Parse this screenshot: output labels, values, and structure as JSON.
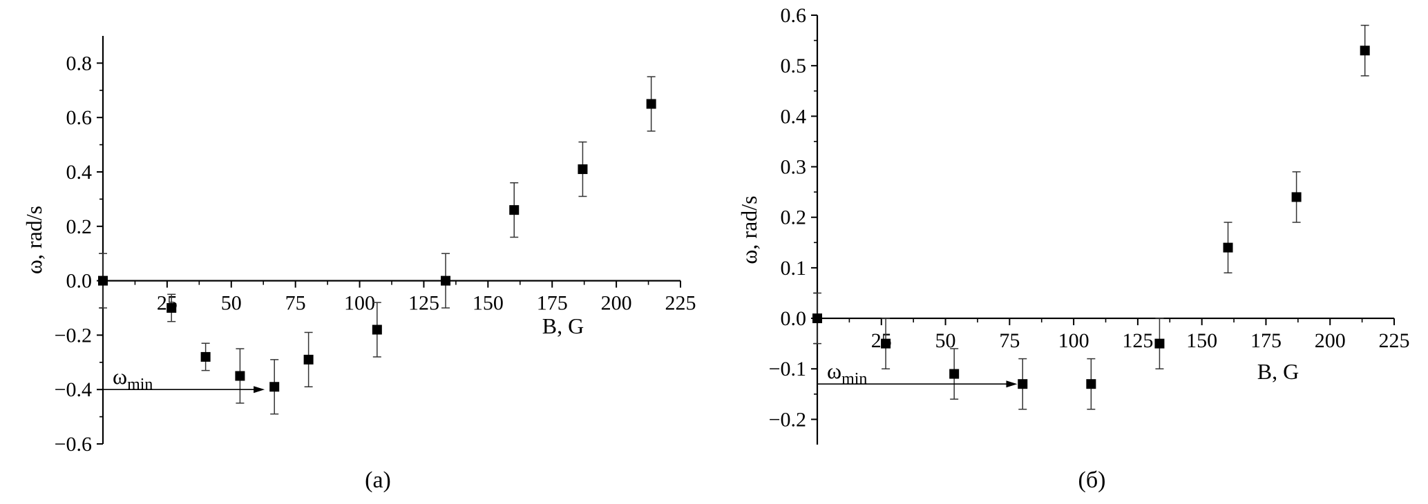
{
  "chart_data": [
    {
      "type": "scatter",
      "panel_label": "(a)",
      "xlabel": "B, G",
      "ylabel": "ω, rad/s",
      "xlim": [
        0,
        225
      ],
      "ylim": [
        -0.6,
        0.9
      ],
      "x_ticks": [
        25,
        50,
        75,
        100,
        125,
        150,
        175,
        200,
        225
      ],
      "y_ticks": [
        -0.6,
        -0.4,
        -0.2,
        0.0,
        0.2,
        0.4,
        0.6,
        0.8
      ],
      "x_tick_labels": [
        "25",
        "50",
        "75",
        "100",
        "125",
        "150",
        "175",
        "200",
        "225"
      ],
      "y_tick_labels": [
        "-0.6",
        "-0.4",
        "-0.2",
        "0.0",
        "0.2",
        "0.4",
        "0.6",
        "0.8"
      ],
      "marker": "filled-square",
      "grid": false,
      "points": [
        {
          "x": 0,
          "y": 0.0,
          "err": 0.1
        },
        {
          "x": 26.7,
          "y": -0.1,
          "err": 0.05
        },
        {
          "x": 40,
          "y": -0.28,
          "err": 0.05
        },
        {
          "x": 53.4,
          "y": -0.35,
          "err": 0.1
        },
        {
          "x": 66.8,
          "y": -0.39,
          "err": 0.1
        },
        {
          "x": 80.1,
          "y": -0.29,
          "err": 0.1
        },
        {
          "x": 106.8,
          "y": -0.18,
          "err": 0.1
        },
        {
          "x": 133.5,
          "y": 0.0,
          "err": 0.1
        },
        {
          "x": 160.2,
          "y": 0.26,
          "err": 0.1
        },
        {
          "x": 186.9,
          "y": 0.41,
          "err": 0.1
        },
        {
          "x": 213.6,
          "y": 0.65,
          "err": 0.1
        }
      ],
      "annotation": {
        "text": "ω",
        "subscript": "min",
        "y": -0.4,
        "x_to": 63
      }
    },
    {
      "type": "scatter",
      "panel_label": "(б)",
      "xlabel": "B, G",
      "ylabel": "ω, rad/s",
      "xlim": [
        0,
        225
      ],
      "ylim": [
        -0.25,
        0.6
      ],
      "x_ticks": [
        25,
        50,
        75,
        100,
        125,
        150,
        175,
        200,
        225
      ],
      "y_ticks": [
        -0.2,
        -0.1,
        0.0,
        0.1,
        0.2,
        0.3,
        0.4,
        0.5,
        0.6
      ],
      "x_tick_labels": [
        "25",
        "50",
        "75",
        "100",
        "125",
        "150",
        "175",
        "200",
        "225"
      ],
      "y_tick_labels": [
        "-0.2",
        "-0.1",
        "0.0",
        "0.1",
        "0.2",
        "0.3",
        "0.4",
        "0.5",
        "0.6"
      ],
      "marker": "filled-square",
      "grid": false,
      "points": [
        {
          "x": 0,
          "y": 0.0,
          "err": 0.05
        },
        {
          "x": 26.7,
          "y": -0.05,
          "err": 0.05
        },
        {
          "x": 53.4,
          "y": -0.11,
          "err": 0.05
        },
        {
          "x": 80.1,
          "y": -0.13,
          "err": 0.05
        },
        {
          "x": 106.8,
          "y": -0.13,
          "err": 0.05
        },
        {
          "x": 133.5,
          "y": -0.05,
          "err": 0.05
        },
        {
          "x": 160.2,
          "y": 0.14,
          "err": 0.05
        },
        {
          "x": 186.9,
          "y": 0.24,
          "err": 0.05
        },
        {
          "x": 213.6,
          "y": 0.53,
          "err": 0.05
        }
      ],
      "annotation": {
        "text": "ω",
        "subscript": "min",
        "y": -0.13,
        "x_to": 78
      }
    }
  ]
}
